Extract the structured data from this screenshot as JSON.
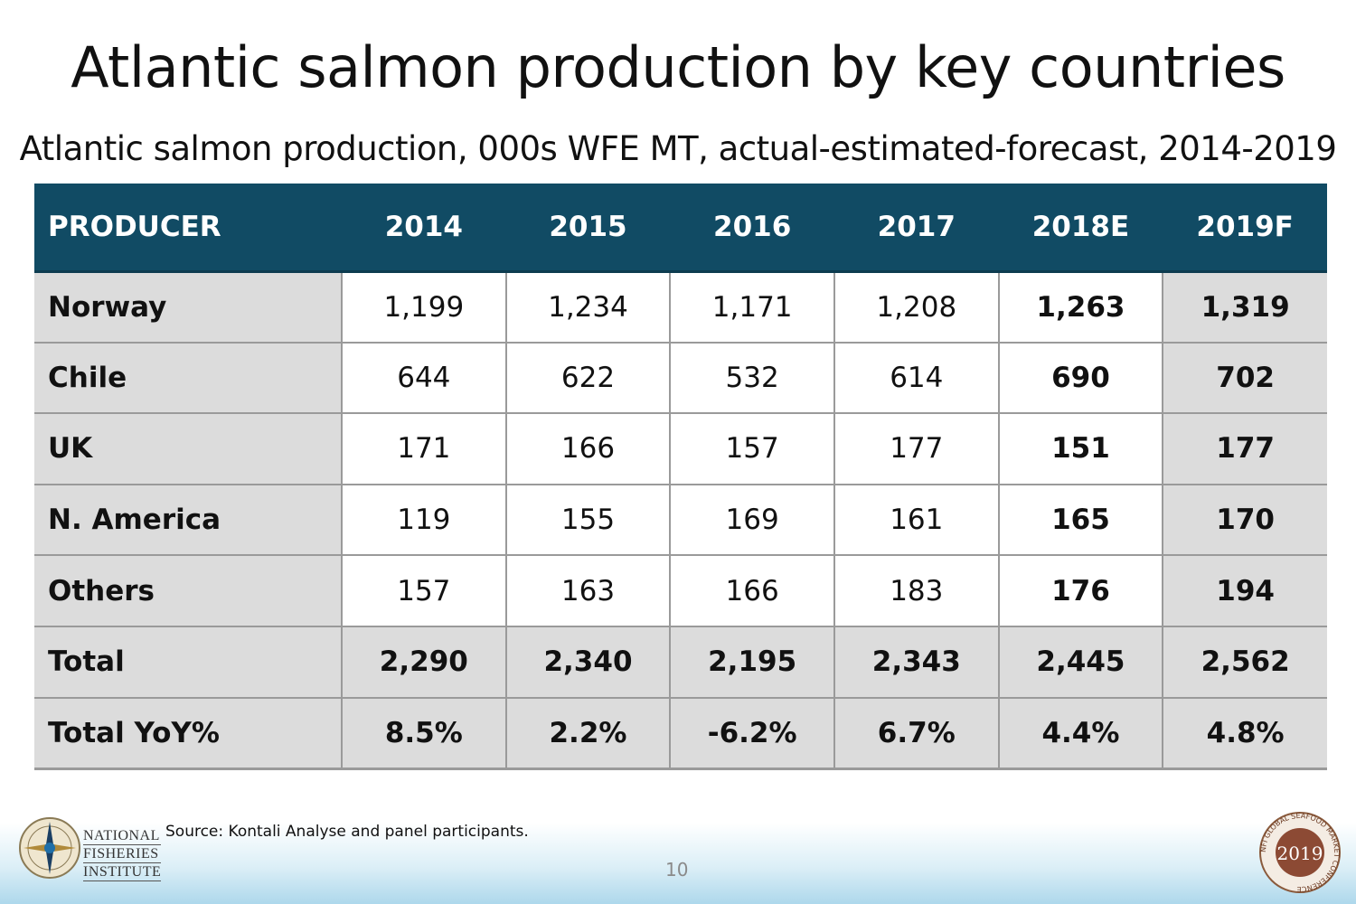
{
  "slide": {
    "title": "Atlantic salmon production by key countries",
    "subtitle": "Atlantic salmon production, 000s WFE MT, actual-estimated-forecast, 2014-2019",
    "page_number": "10"
  },
  "table": {
    "header": [
      "PRODUCER",
      "2014",
      "2015",
      "2016",
      "2017",
      "2018E",
      "2019F"
    ],
    "rows": [
      {
        "label": "Norway",
        "values": [
          "1,199",
          "1,234",
          "1,171",
          "1,208",
          "1,263",
          "1,319"
        ]
      },
      {
        "label": "Chile",
        "values": [
          "644",
          "622",
          "532",
          "614",
          "690",
          "702"
        ]
      },
      {
        "label": "UK",
        "values": [
          "171",
          "166",
          "157",
          "177",
          "151",
          "177"
        ]
      },
      {
        "label": "N. America",
        "values": [
          "119",
          "155",
          "169",
          "161",
          "165",
          "170"
        ]
      },
      {
        "label": "Others",
        "values": [
          "157",
          "163",
          "166",
          "183",
          "176",
          "194"
        ]
      },
      {
        "label": "Total",
        "values": [
          "2,290",
          "2,340",
          "2,195",
          "2,343",
          "2,445",
          "2,562"
        ]
      },
      {
        "label": "Total YoY%",
        "values": [
          "8.5%",
          "2.2%",
          "-6.2%",
          "6.7%",
          "4.4%",
          "4.8%"
        ]
      }
    ]
  },
  "footer": {
    "source": "Source: Kontali Analyse and panel participants.",
    "nfi_lines": [
      "NATIONAL",
      "FISHERIES",
      "INSTITUTE"
    ],
    "conference_year": "2019",
    "conference_ring_text": "NFI GLOBAL SEAFOOD MARKET CONFERENCE"
  },
  "colors": {
    "header_bg": "#114b64",
    "label_bg": "#dcdcdc"
  }
}
